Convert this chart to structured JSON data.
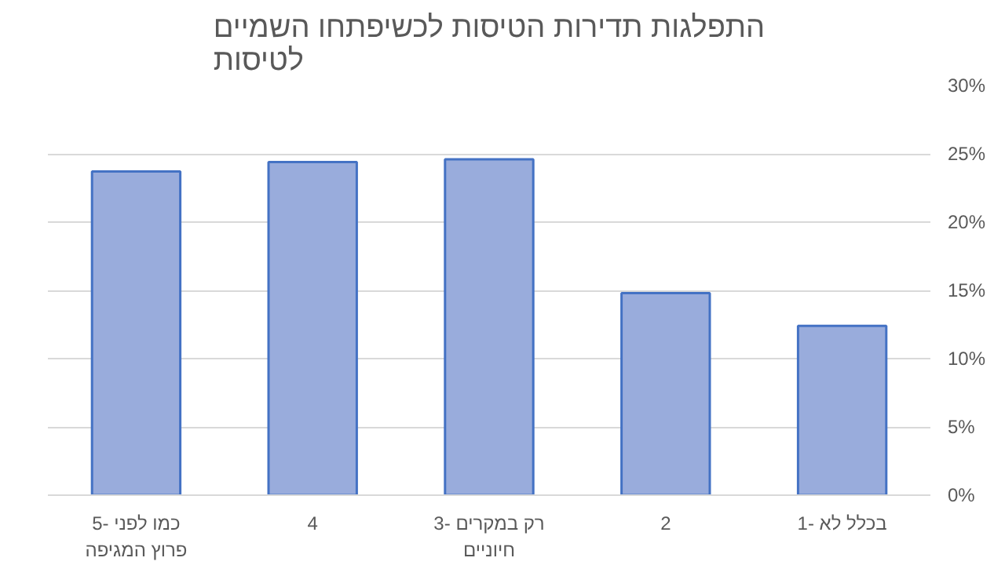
{
  "chart_data": {
    "type": "bar",
    "title": "התפלגות תדירות הטיסות לכשיפתחו השמיים לטיסות",
    "categories": [
      "5- כמו לפני פרוץ המגיפה",
      "4",
      "3- רק במקרים חיוניים",
      "2",
      "1- בכלל לא"
    ],
    "values": [
      23.7,
      24.4,
      24.6,
      14.8,
      12.4
    ],
    "color": "#99acdc",
    "ylim": [
      0,
      30
    ],
    "yticks": [
      {
        "value": 0,
        "label": "0%"
      },
      {
        "value": 5,
        "label": "5%"
      },
      {
        "value": 10,
        "label": "10%"
      },
      {
        "value": 15,
        "label": "15%"
      },
      {
        "value": 20,
        "label": "20%"
      },
      {
        "value": 25,
        "label": "25%"
      },
      {
        "value": 30,
        "label": "30%"
      }
    ],
    "grid": "y"
  }
}
